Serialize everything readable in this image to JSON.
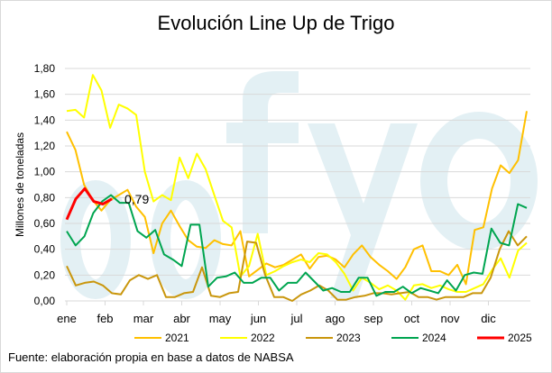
{
  "chart_data": {
    "type": "line",
    "title": "Evolución Line Up de Trigo",
    "ylabel": "Millones de toneladas",
    "xlabel": "",
    "ylim": [
      0,
      1.8
    ],
    "yticks": [
      "0,00",
      "0,20",
      "0,40",
      "0,60",
      "0,80",
      "1,00",
      "1,20",
      "1,40",
      "1,60",
      "1,80"
    ],
    "xticks": [
      "ene",
      "feb",
      "mar",
      "abr",
      "may",
      "jun",
      "jul",
      "ago",
      "sep",
      "oct",
      "nov",
      "dic"
    ],
    "grid": true,
    "legend": "bottom",
    "annotation": "0,79",
    "series": [
      {
        "name": "2021",
        "color": "#FFC000",
        "values": [
          1.31,
          1.17,
          0.9,
          0.78,
          0.7,
          0.78,
          0.82,
          0.86,
          0.73,
          0.65,
          0.37,
          0.6,
          0.7,
          0.58,
          0.47,
          0.42,
          0.41,
          0.47,
          0.44,
          0.43,
          0.54,
          0.19,
          0.24,
          0.29,
          0.26,
          0.28,
          0.32,
          0.36,
          0.25,
          0.34,
          0.35,
          0.32,
          0.26,
          0.36,
          0.43,
          0.34,
          0.28,
          0.23,
          0.17,
          0.26,
          0.4,
          0.43,
          0.23,
          0.23,
          0.2,
          0.28,
          0.13,
          0.55,
          0.57,
          0.87,
          1.05,
          0.99,
          1.09,
          1.47
        ]
      },
      {
        "name": "2022",
        "color": "#FFFF00",
        "values": [
          1.47,
          1.48,
          1.42,
          1.75,
          1.63,
          1.34,
          1.52,
          1.49,
          1.44,
          1.0,
          0.77,
          0.82,
          0.78,
          1.11,
          0.95,
          1.14,
          1.02,
          0.82,
          0.62,
          0.57,
          0.19,
          0.27,
          0.52,
          0.2,
          0.23,
          0.27,
          0.3,
          0.32,
          0.3,
          0.37,
          0.36,
          0.3,
          0.21,
          0.08,
          0.18,
          0.14,
          0.09,
          0.12,
          0.08,
          0.01,
          0.12,
          0.13,
          0.1,
          0.12,
          0.09,
          0.07,
          0.07,
          0.1,
          0.13,
          0.24,
          0.33,
          0.18,
          0.39,
          0.45
        ]
      },
      {
        "name": "2023",
        "color": "#C9960C",
        "values": [
          0.27,
          0.12,
          0.14,
          0.15,
          0.12,
          0.06,
          0.05,
          0.16,
          0.2,
          0.17,
          0.2,
          0.03,
          0.03,
          0.06,
          0.07,
          0.26,
          0.04,
          0.03,
          0.06,
          0.07,
          0.46,
          0.45,
          0.2,
          0.03,
          0.03,
          0.0,
          0.05,
          0.08,
          0.12,
          0.08,
          0.01,
          0.01,
          0.03,
          0.04,
          0.06,
          0.06,
          0.05,
          0.06,
          0.07,
          0.03,
          0.03,
          0.01,
          0.03,
          0.03,
          0.03,
          0.06,
          0.06,
          0.18,
          0.4,
          0.54,
          0.43,
          0.5
        ]
      },
      {
        "name": "2024",
        "color": "#00A550",
        "values": [
          0.54,
          0.43,
          0.5,
          0.68,
          0.77,
          0.82,
          0.76,
          0.76,
          0.54,
          0.49,
          0.55,
          0.36,
          0.32,
          0.27,
          0.59,
          0.59,
          0.11,
          0.18,
          0.19,
          0.22,
          0.14,
          0.14,
          0.18,
          0.18,
          0.08,
          0.14,
          0.14,
          0.22,
          0.15,
          0.08,
          0.1,
          0.07,
          0.07,
          0.18,
          0.18,
          0.04,
          0.07,
          0.07,
          0.11,
          0.06,
          0.1,
          0.08,
          0.06,
          0.16,
          0.08,
          0.2,
          0.22,
          0.21,
          0.56,
          0.45,
          0.43,
          0.75,
          0.72
        ]
      },
      {
        "name": "2025",
        "color": "#FF0000",
        "values": [
          0.63,
          0.79,
          0.87,
          0.77,
          0.75,
          0.79
        ]
      }
    ]
  },
  "footer": "Fuente: elaboración propia en base a datos de NABSA",
  "watermark": "ofyo"
}
